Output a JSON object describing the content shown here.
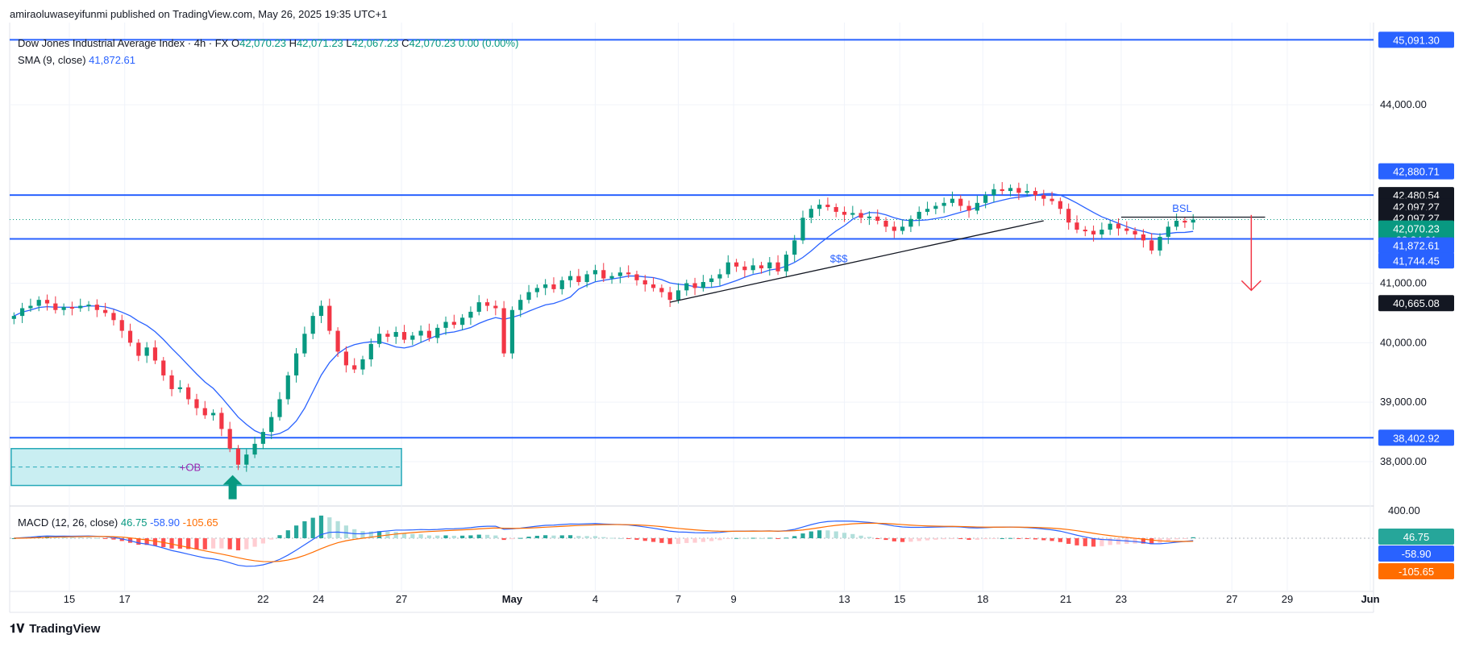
{
  "header": {
    "published": "amiraoluwaseyifunmi published on TradingView.com, May 26, 2025 19:35 UTC+1"
  },
  "legend": {
    "symbol": "Dow Jones Industrial Average Index · 4h · FX",
    "o_label": "O",
    "o": "42,070.23",
    "h_label": "H",
    "h": "42,071.23",
    "l_label": "L",
    "l": "42,067.23",
    "c_label": "C",
    "c": "42,070.23",
    "change": "0.00 (0.00%)",
    "sma_label": "SMA (9, close)",
    "sma_value": "41,872.61"
  },
  "macd_legend": {
    "label": "MACD (12, 26, close)",
    "hist": "46.75",
    "macd": "-58.90",
    "signal": "-105.65"
  },
  "footer": {
    "brand": "TradingView"
  },
  "colors": {
    "up": "#089981",
    "down": "#f23645",
    "sma": "#2962ff",
    "level": "#2962ff",
    "signal": "#ff6d00",
    "ob_fill": "#c9eef2",
    "ob_border": "#26a9b8"
  },
  "chart_data": {
    "type": "candlestick",
    "timeframe": "4h",
    "y_ticks": [
      38000,
      39000,
      40000,
      41000,
      44000
    ],
    "y_tick_labels": [
      "38,000.00",
      "39,000.00",
      "40,000.00",
      "41,000.00",
      "44,000.00"
    ],
    "x_ticks": [
      {
        "label": "15",
        "day": 15
      },
      {
        "label": "17",
        "day": 17
      },
      {
        "label": "22",
        "day": 22
      },
      {
        "label": "24",
        "day": 24
      },
      {
        "label": "27",
        "day": 27
      },
      {
        "label": "May",
        "day": 31
      },
      {
        "label": "4",
        "day": 34
      },
      {
        "label": "7",
        "day": 37
      },
      {
        "label": "9",
        "day": 39
      },
      {
        "label": "13",
        "day": 43
      },
      {
        "label": "15",
        "day": 45
      },
      {
        "label": "18",
        "day": 48
      },
      {
        "label": "21",
        "day": 51
      },
      {
        "label": "23",
        "day": 53
      },
      {
        "label": "27",
        "day": 57
      },
      {
        "label": "29",
        "day": 59
      },
      {
        "label": "Jun",
        "day": 62
      }
    ],
    "horizontal_levels": [
      45091.3,
      42480.54,
      41744.45,
      38402.92
    ],
    "price_badges": [
      {
        "text": "45,091.30",
        "price": 45091.3,
        "color": "#2962ff"
      },
      {
        "text": "42,880.71",
        "price": 42880.71,
        "color": "#2962ff"
      },
      {
        "text": "42,480.54",
        "price": 42480.54,
        "color": "#131722"
      },
      {
        "text": "42,097.27",
        "price": 42290,
        "color": "#131722"
      },
      {
        "text": "42,097.27",
        "price": 42097.27,
        "color": "#131722"
      },
      {
        "text": "42,070.23",
        "price": 41920,
        "color": "#089981",
        "sub": "02:24:01"
      },
      {
        "text": "41,872.61",
        "price": 41635,
        "color": "#2962ff"
      },
      {
        "text": "41,744.45",
        "price": 41382,
        "color": "#2962ff"
      },
      {
        "text": "40,665.08",
        "price": 40665.08,
        "color": "#131722"
      },
      {
        "text": "38,402.92",
        "price": 38402.92,
        "color": "#2962ff"
      }
    ],
    "annotations": [
      {
        "type": "zone",
        "label": "+OB",
        "x0": 12.9,
        "x1": 27.0,
        "y0": 37.6,
        "y1": 38.22
      },
      {
        "type": "arrow_up",
        "day": 20.9,
        "price": 37.45
      },
      {
        "type": "trendline",
        "x0": 36.7,
        "y0": 40.68,
        "x1": 50.2,
        "y1": 42.05
      },
      {
        "type": "text",
        "label": "$$$",
        "day": 42.8,
        "price": 41.35
      },
      {
        "type": "text",
        "label": "BSL",
        "day": 55.2,
        "price": 42.2
      },
      {
        "type": "hline_short",
        "x0": 53.0,
        "x1": 58.2,
        "price": 42.07
      },
      {
        "type": "arrow_down",
        "day": 57.7,
        "from": 42.12,
        "to": 40.88
      }
    ],
    "series_close": [
      [
        13.0,
        40.45
      ],
      [
        13.3,
        40.58
      ],
      [
        13.6,
        40.62
      ],
      [
        13.9,
        40.72
      ],
      [
        14.2,
        40.66
      ],
      [
        14.5,
        40.55
      ],
      [
        14.8,
        40.6
      ],
      [
        15.1,
        40.58
      ],
      [
        15.4,
        40.62
      ],
      [
        15.7,
        40.64
      ],
      [
        16.0,
        40.55
      ],
      [
        16.3,
        40.5
      ],
      [
        16.6,
        40.38
      ],
      [
        16.9,
        40.2
      ],
      [
        17.2,
        40.0
      ],
      [
        17.5,
        39.78
      ],
      [
        17.8,
        39.92
      ],
      [
        18.1,
        39.7
      ],
      [
        18.4,
        39.45
      ],
      [
        18.7,
        39.22
      ],
      [
        19.0,
        39.25
      ],
      [
        19.3,
        39.05
      ],
      [
        19.6,
        38.9
      ],
      [
        19.9,
        38.78
      ],
      [
        20.2,
        38.82
      ],
      [
        20.5,
        38.55
      ],
      [
        20.8,
        38.22
      ],
      [
        21.1,
        37.95
      ],
      [
        21.4,
        38.12
      ],
      [
        21.7,
        38.3
      ],
      [
        22.0,
        38.5
      ],
      [
        22.3,
        38.75
      ],
      [
        22.6,
        39.05
      ],
      [
        22.9,
        39.45
      ],
      [
        23.2,
        39.82
      ],
      [
        23.5,
        40.15
      ],
      [
        23.8,
        40.45
      ],
      [
        24.1,
        40.62
      ],
      [
        24.4,
        40.2
      ],
      [
        24.7,
        39.85
      ],
      [
        25.0,
        39.62
      ],
      [
        25.3,
        39.55
      ],
      [
        25.6,
        39.72
      ],
      [
        25.9,
        39.98
      ],
      [
        26.2,
        40.15
      ],
      [
        26.5,
        40.1
      ],
      [
        26.8,
        40.18
      ],
      [
        27.1,
        40.05
      ],
      [
        27.4,
        40.12
      ],
      [
        27.7,
        40.2
      ],
      [
        28.0,
        40.08
      ],
      [
        28.3,
        40.25
      ],
      [
        28.6,
        40.35
      ],
      [
        28.9,
        40.3
      ],
      [
        29.2,
        40.42
      ],
      [
        29.5,
        40.52
      ],
      [
        29.8,
        40.68
      ],
      [
        30.1,
        40.62
      ],
      [
        30.4,
        40.58
      ],
      [
        30.7,
        39.82
      ],
      [
        31.0,
        40.55
      ],
      [
        31.3,
        40.72
      ],
      [
        31.6,
        40.85
      ],
      [
        31.9,
        40.92
      ],
      [
        32.2,
        40.98
      ],
      [
        32.5,
        40.9
      ],
      [
        32.8,
        41.05
      ],
      [
        33.1,
        41.12
      ],
      [
        33.4,
        41.02
      ],
      [
        33.7,
        41.15
      ],
      [
        34.0,
        41.22
      ],
      [
        34.3,
        41.08
      ],
      [
        34.6,
        41.12
      ],
      [
        34.9,
        41.18
      ],
      [
        35.2,
        41.15
      ],
      [
        35.5,
        41.05
      ],
      [
        35.8,
        40.98
      ],
      [
        36.1,
        40.92
      ],
      [
        36.4,
        40.85
      ],
      [
        36.7,
        40.72
      ],
      [
        37.0,
        40.88
      ],
      [
        37.3,
        41.0
      ],
      [
        37.6,
        40.92
      ],
      [
        37.9,
        41.02
      ],
      [
        38.2,
        41.08
      ],
      [
        38.5,
        41.15
      ],
      [
        38.8,
        41.35
      ],
      [
        39.1,
        41.28
      ],
      [
        39.4,
        41.22
      ],
      [
        39.7,
        41.3
      ],
      [
        40.0,
        41.25
      ],
      [
        40.3,
        41.35
      ],
      [
        40.6,
        41.2
      ],
      [
        40.9,
        41.48
      ],
      [
        41.2,
        41.72
      ],
      [
        41.5,
        42.1
      ],
      [
        41.8,
        42.25
      ],
      [
        42.1,
        42.32
      ],
      [
        42.4,
        42.28
      ],
      [
        42.7,
        42.2
      ],
      [
        43.0,
        42.15
      ],
      [
        43.3,
        42.18
      ],
      [
        43.6,
        42.1
      ],
      [
        43.9,
        42.12
      ],
      [
        44.2,
        42.05
      ],
      [
        44.5,
        41.95
      ],
      [
        44.8,
        41.88
      ],
      [
        45.1,
        41.95
      ],
      [
        45.4,
        42.08
      ],
      [
        45.7,
        42.2
      ],
      [
        46.0,
        42.25
      ],
      [
        46.3,
        42.3
      ],
      [
        46.6,
        42.35
      ],
      [
        46.9,
        42.42
      ],
      [
        47.2,
        42.3
      ],
      [
        47.5,
        42.22
      ],
      [
        47.8,
        42.35
      ],
      [
        48.1,
        42.48
      ],
      [
        48.4,
        42.58
      ],
      [
        48.7,
        42.55
      ],
      [
        49.0,
        42.6
      ],
      [
        49.3,
        42.52
      ],
      [
        49.6,
        42.55
      ],
      [
        49.9,
        42.48
      ],
      [
        50.2,
        42.42
      ],
      [
        50.5,
        42.38
      ],
      [
        50.8,
        42.25
      ],
      [
        51.1,
        42.02
      ],
      [
        51.4,
        41.9
      ],
      [
        51.7,
        41.88
      ],
      [
        52.0,
        41.82
      ],
      [
        52.3,
        41.9
      ],
      [
        52.6,
        42.0
      ],
      [
        52.9,
        41.92
      ],
      [
        53.2,
        41.88
      ],
      [
        53.5,
        41.82
      ],
      [
        53.8,
        41.72
      ],
      [
        54.1,
        41.55
      ],
      [
        54.4,
        41.78
      ],
      [
        54.7,
        41.95
      ],
      [
        55.0,
        42.05
      ],
      [
        55.3,
        42.02
      ],
      [
        55.6,
        42.07
      ]
    ],
    "macd": {
      "hist": 46.75,
      "macd": -58.9,
      "signal": -105.65,
      "tick": "400.00"
    }
  }
}
